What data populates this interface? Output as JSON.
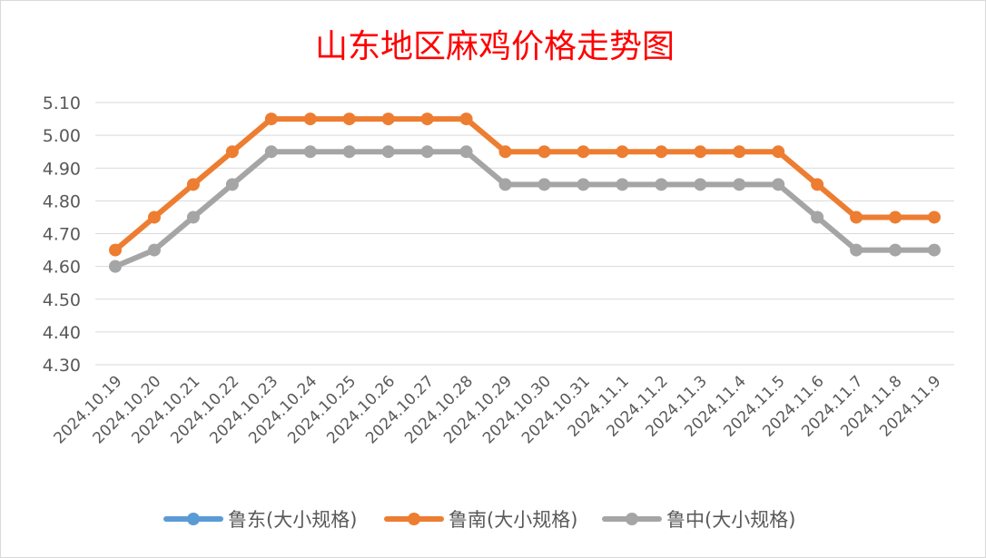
{
  "chart_data": {
    "type": "line",
    "title": "山东地区麻鸡价格走势图",
    "categories": [
      "2024.10.19",
      "2024.10.20",
      "2024.10.21",
      "2024.10.22",
      "2024.10.23",
      "2024.10.24",
      "2024.10.25",
      "2024.10.26",
      "2024.10.27",
      "2024.10.28",
      "2024.10.29",
      "2024.10.30",
      "2024.10.31",
      "2024.11.1",
      "2024.11.2",
      "2024.11.3",
      "2024.11.4",
      "2024.11.5",
      "2024.11.6",
      "2024.11.7",
      "2024.11.8",
      "2024.11.9"
    ],
    "ylim": [
      4.3,
      5.1
    ],
    "yticks": [
      "4.30",
      "4.40",
      "4.50",
      "4.60",
      "4.70",
      "4.80",
      "4.90",
      "5.00",
      "5.10"
    ],
    "grid": true,
    "legend_position": "bottom",
    "series": [
      {
        "name": "鲁东(大小规格)",
        "color": "#5b9bd5",
        "values": [
          null,
          null,
          null,
          null,
          null,
          null,
          null,
          null,
          null,
          null,
          null,
          null,
          null,
          null,
          null,
          null,
          null,
          null,
          null,
          null,
          null,
          null
        ]
      },
      {
        "name": "鲁南(大小规格)",
        "color": "#ed7d31",
        "values": [
          4.65,
          4.75,
          4.85,
          4.95,
          5.05,
          5.05,
          5.05,
          5.05,
          5.05,
          5.05,
          4.95,
          4.95,
          4.95,
          4.95,
          4.95,
          4.95,
          4.95,
          4.95,
          4.85,
          4.75,
          4.75,
          4.75
        ]
      },
      {
        "name": "鲁中(大小规格)",
        "color": "#a5a5a5",
        "values": [
          4.6,
          4.65,
          4.75,
          4.85,
          4.95,
          4.95,
          4.95,
          4.95,
          4.95,
          4.95,
          4.85,
          4.85,
          4.85,
          4.85,
          4.85,
          4.85,
          4.85,
          4.85,
          4.75,
          4.65,
          4.65,
          4.65
        ]
      }
    ]
  }
}
